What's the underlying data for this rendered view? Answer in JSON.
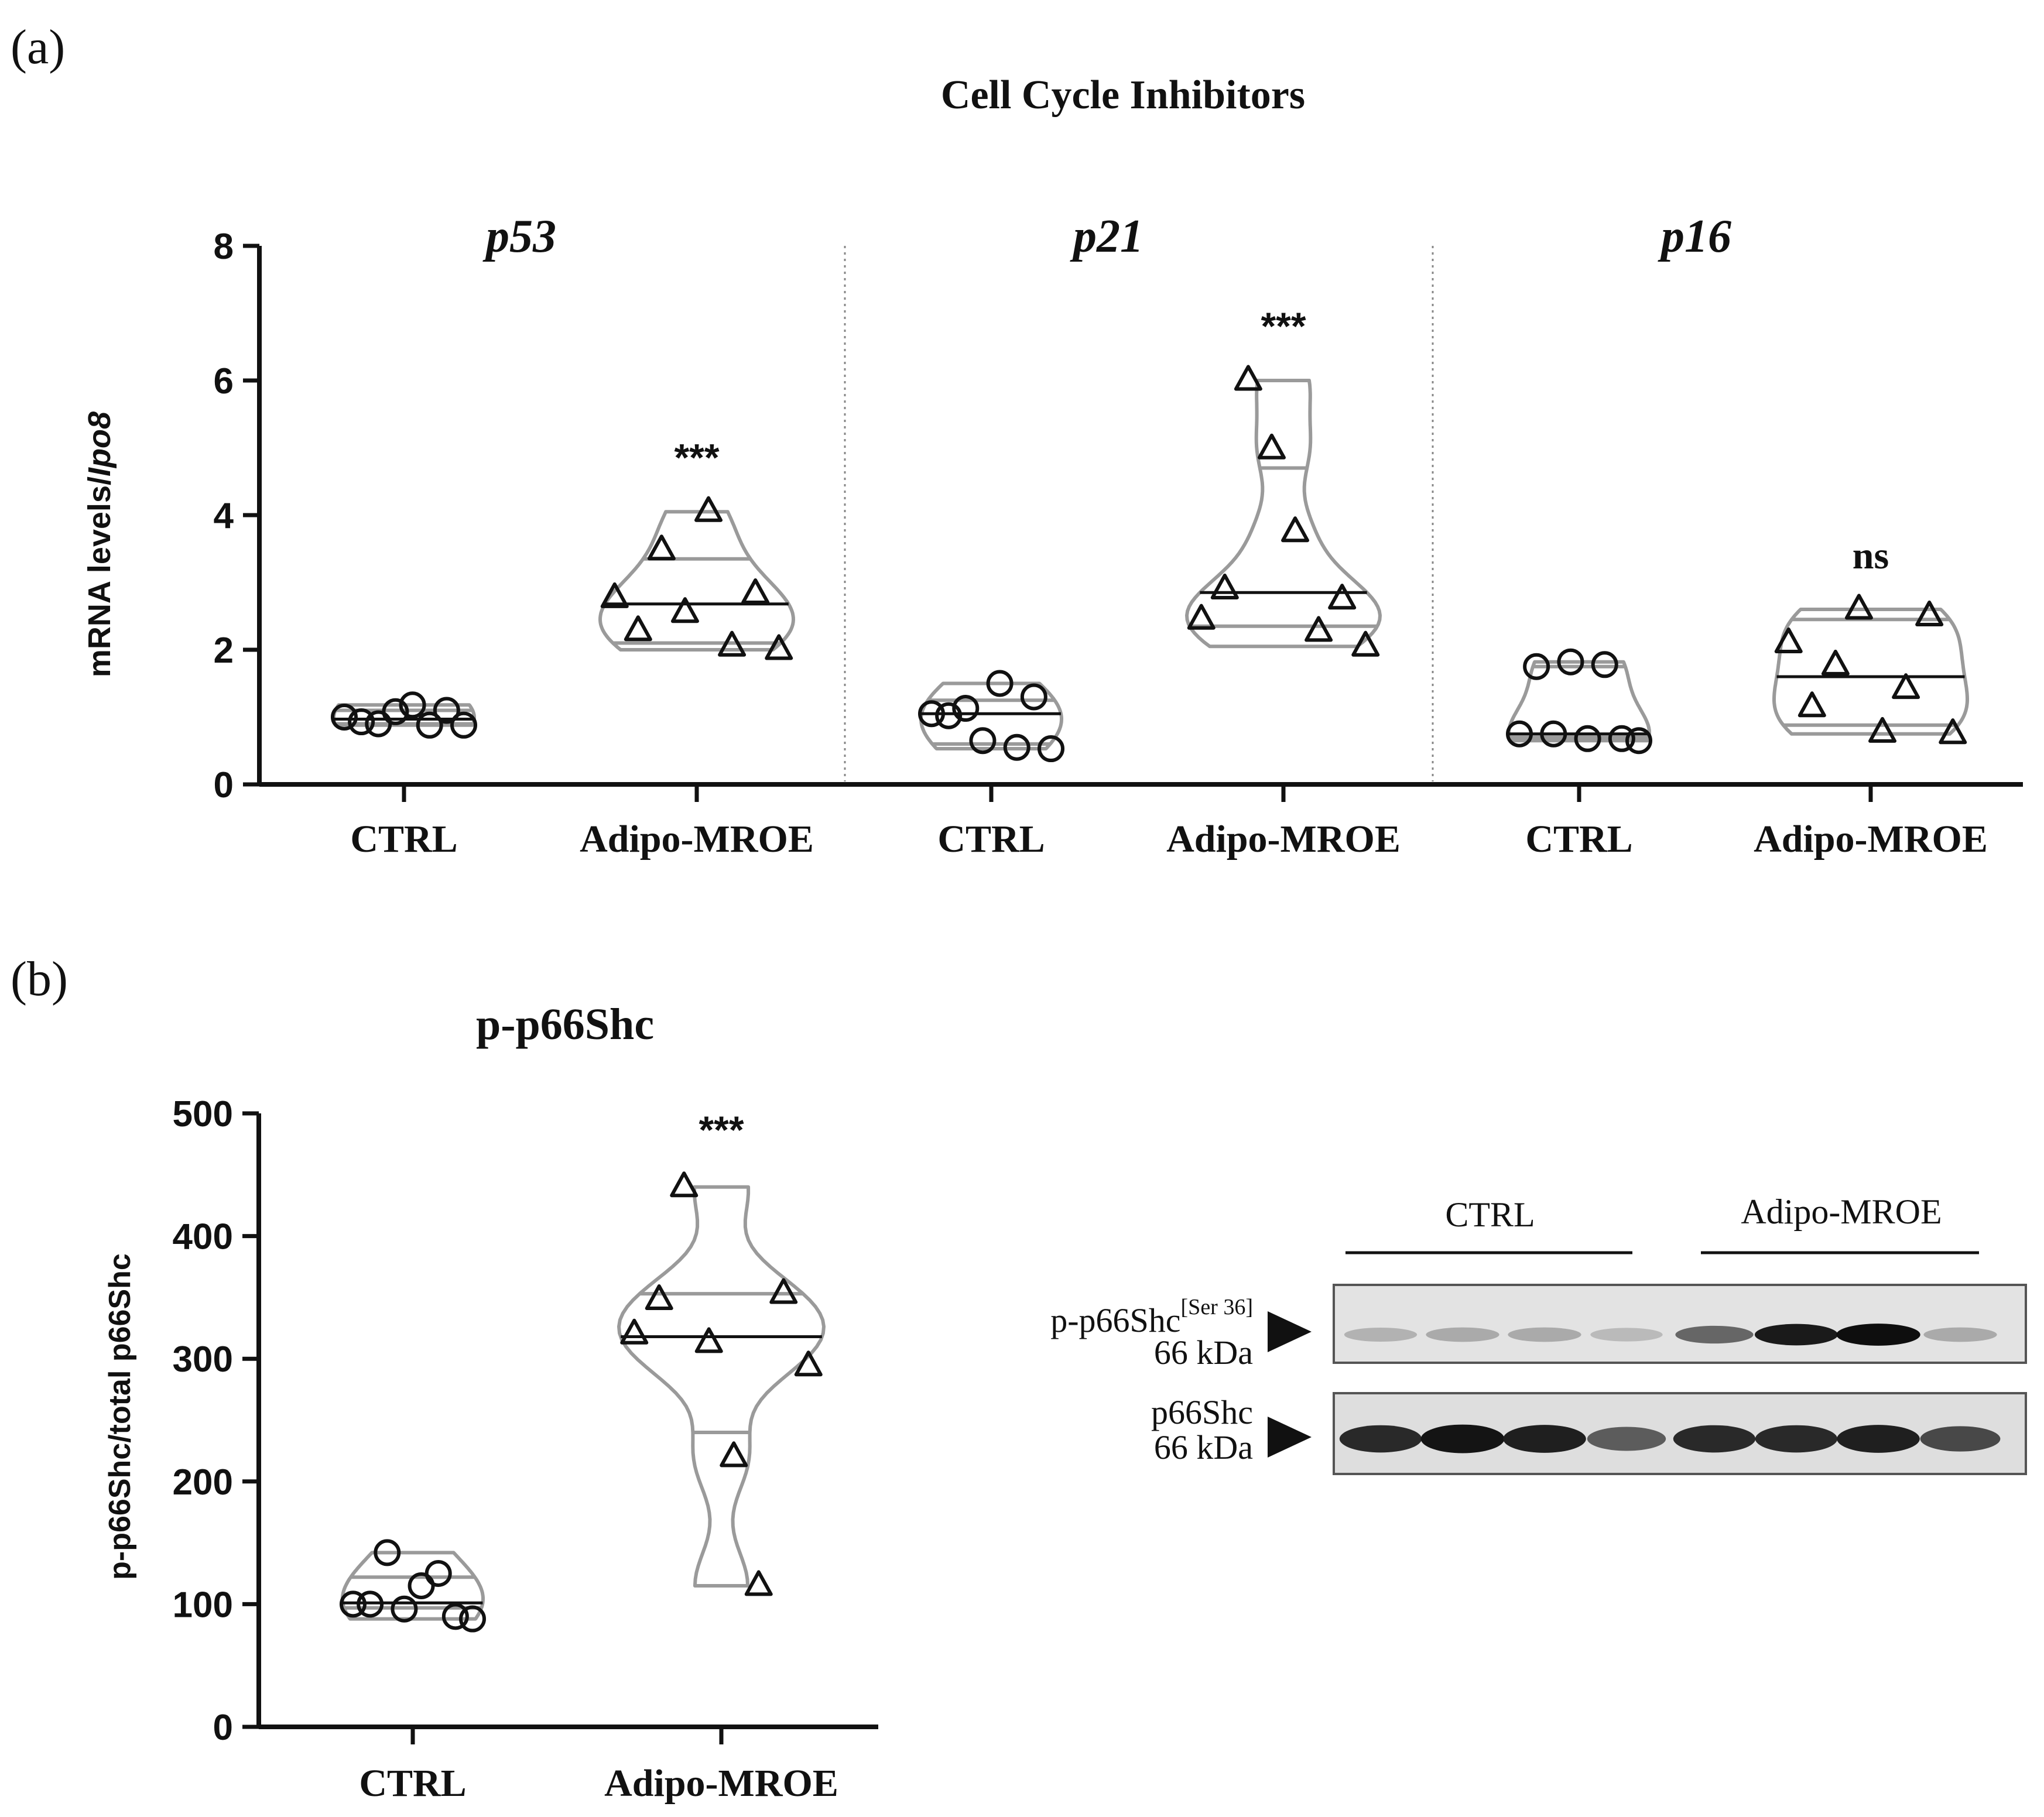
{
  "panel_a": {
    "panel_label": "(a)",
    "title": "Cell Cycle Inhibitors",
    "ylabel_prefix": "mRNA levels/",
    "ylabel_italic": "Ipo8"
  },
  "panel_b": {
    "panel_label": "(b)",
    "title": "p-p66Shc",
    "ylabel": "p-p66Shc/total p66Shc"
  },
  "blot": {
    "group_labels": [
      "CTRL",
      "Adipo-MROE"
    ],
    "band1": {
      "name": "p-p66Shc",
      "superscript": "[Ser 36]",
      "size": "66 kDa",
      "intensity": [
        0.18,
        0.22,
        0.22,
        0.14,
        0.55,
        0.92,
        0.98,
        0.22
      ]
    },
    "band2": {
      "name": "p66Shc",
      "size": "66 kDa",
      "intensity": [
        0.85,
        0.95,
        0.9,
        0.6,
        0.85,
        0.85,
        0.9,
        0.7
      ]
    }
  },
  "chart_data": [
    {
      "type": "violin",
      "title": "Cell Cycle Inhibitors",
      "ylabel": "mRNA levels/Ipo8",
      "ylim": [
        0,
        8
      ],
      "yticks": [
        0,
        2,
        4,
        6,
        8
      ],
      "facets": [
        {
          "gene": "p53",
          "groups": [
            {
              "name": "CTRL",
              "marker": "circle",
              "values": [
                1.0,
                0.93,
                0.9,
                1.08,
                1.18,
                0.88,
                1.1,
                0.88
              ],
              "median": 0.97,
              "quartiles": [
                0.9,
                1.1
              ]
            },
            {
              "name": "Adipo-MROE",
              "marker": "triangle",
              "values": [
                2.77,
                2.28,
                3.48,
                2.55,
                4.05,
                2.05,
                2.83,
                2.0
              ],
              "median": 2.68,
              "quartiles": [
                2.1,
                3.35
              ],
              "significance": "***"
            }
          ]
        },
        {
          "gene": "p21",
          "groups": [
            {
              "name": "CTRL",
              "marker": "circle",
              "values": [
                1.05,
                1.02,
                1.13,
                0.65,
                1.5,
                0.55,
                1.3,
                0.53
              ],
              "median": 1.05,
              "quartiles": [
                0.6,
                1.25
              ]
            },
            {
              "name": "Adipo-MROE",
              "marker": "triangle",
              "values": [
                2.45,
                2.9,
                6.0,
                4.98,
                3.75,
                2.27,
                2.75,
                2.05
              ],
              "median": 2.85,
              "quartiles": [
                2.35,
                4.7
              ],
              "significance": "***"
            }
          ]
        },
        {
          "gene": "p16",
          "groups": [
            {
              "name": "CTRL",
              "marker": "circle",
              "values": [
                0.75,
                1.75,
                0.75,
                1.82,
                0.68,
                1.78,
                0.68,
                0.65
              ],
              "median": 0.75,
              "quartiles": [
                0.7,
                1.75
              ]
            },
            {
              "name": "Adipo-MROE",
              "marker": "triangle",
              "values": [
                2.1,
                1.15,
                1.77,
                2.6,
                0.77,
                1.42,
                2.5,
                0.75
              ],
              "median": 1.6,
              "quartiles": [
                0.88,
                2.45
              ],
              "significance": "ns"
            }
          ]
        }
      ]
    },
    {
      "type": "violin",
      "title": "p-p66Shc",
      "ylabel": "p-p66Shc/total p66Shc",
      "ylim": [
        0,
        500
      ],
      "yticks": [
        0,
        100,
        200,
        300,
        400,
        500
      ],
      "groups": [
        {
          "name": "CTRL",
          "marker": "circle",
          "values": [
            100,
            100,
            142,
            96,
            115,
            125,
            90,
            88
          ],
          "median": 101,
          "quartiles": [
            97,
            122
          ]
        },
        {
          "name": "Adipo-MROE",
          "marker": "triangle",
          "values": [
            320,
            348,
            440,
            313,
            220,
            115,
            353,
            294
          ],
          "median": 318,
          "quartiles": [
            240,
            353
          ],
          "significance": "***"
        }
      ]
    }
  ]
}
